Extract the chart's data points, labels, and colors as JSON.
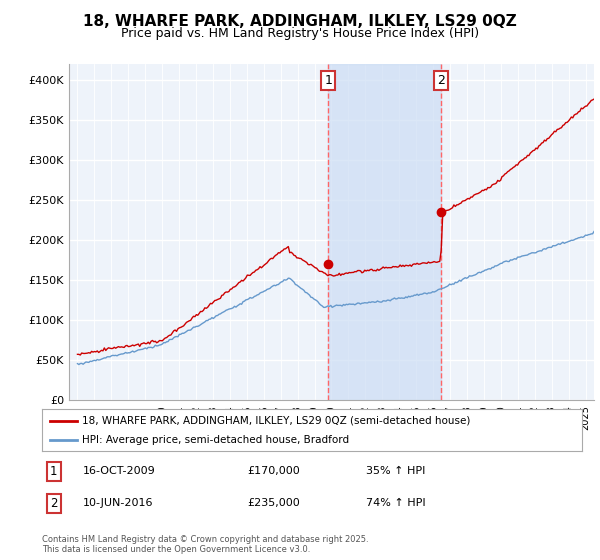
{
  "title": "18, WHARFE PARK, ADDINGHAM, ILKLEY, LS29 0QZ",
  "subtitle": "Price paid vs. HM Land Registry's House Price Index (HPI)",
  "title_fontsize": 11,
  "subtitle_fontsize": 9,
  "background_color": "#ffffff",
  "plot_bg_color": "#ffffff",
  "grid_color": "#cccccc",
  "ylim": [
    0,
    420000
  ],
  "yticks": [
    0,
    50000,
    100000,
    150000,
    200000,
    250000,
    300000,
    350000,
    400000
  ],
  "ytick_labels": [
    "£0",
    "£50K",
    "£100K",
    "£150K",
    "£200K",
    "£250K",
    "£300K",
    "£350K",
    "£400K"
  ],
  "legend_line1": "18, WHARFE PARK, ADDINGHAM, ILKLEY, LS29 0QZ (semi-detached house)",
  "legend_line2": "HPI: Average price, semi-detached house, Bradford",
  "line1_color": "#cc0000",
  "line2_color": "#6699cc",
  "vline_color": "#ff6666",
  "span_color": "#ddeeff",
  "sale1_x": 2009.8,
  "sale1_y": 170000,
  "sale2_x": 2016.45,
  "sale2_y": 235000,
  "footer": "Contains HM Land Registry data © Crown copyright and database right 2025.\nThis data is licensed under the Open Government Licence v3.0.",
  "xlim_start": 1994.5,
  "xlim_end": 2025.5
}
